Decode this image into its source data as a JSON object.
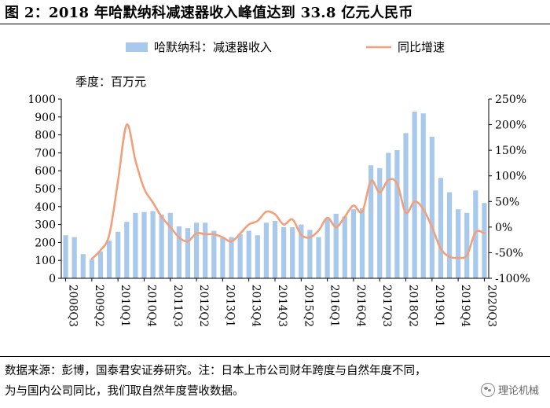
{
  "title": "图 2：2018 年哈默纳科减速器收入峰值达到 33.8 亿元人民币",
  "source_line1": "数据来源：彭博，国泰君安证券研究。注：日本上市公司财年跨度与自然年度不同，",
  "source_line2": "为与国内公司同比，我们取自然年度营收数据。",
  "watermark": "理论机械",
  "colors": {
    "bar": "#a8c9ec",
    "line": "#f3a07a",
    "axis": "#000000"
  },
  "chart_data": {
    "type": "bar",
    "unit_label": "季度：百万元",
    "legend": [
      "哈默纳科：减速器收入",
      "同比增速"
    ],
    "y_left": {
      "min": 0,
      "max": 1000,
      "step": 100,
      "ticks": [
        "0",
        "100",
        "200",
        "300",
        "400",
        "500",
        "600",
        "700",
        "800",
        "900",
        "1000"
      ]
    },
    "y_right": {
      "min": -100,
      "max": 250,
      "step": 50,
      "ticks": [
        "-100%",
        "-50%",
        "0%",
        "50%",
        "100%",
        "150%",
        "200%",
        "250%"
      ]
    },
    "categories": [
      "2008Q3",
      "2008Q4",
      "2009Q1",
      "2009Q2",
      "2009Q3",
      "2009Q4",
      "2010Q1",
      "2010Q2",
      "2010Q3",
      "2010Q4",
      "2011Q1",
      "2011Q2",
      "2011Q3",
      "2011Q4",
      "2012Q1",
      "2012Q2",
      "2012Q3",
      "2012Q4",
      "2013Q1",
      "2013Q2",
      "2013Q3",
      "2013Q4",
      "2014Q1",
      "2014Q2",
      "2014Q3",
      "2014Q4",
      "2015Q1",
      "2015Q2",
      "2015Q3",
      "2015Q4",
      "2016Q1",
      "2016Q2",
      "2016Q3",
      "2016Q4",
      "2017Q1",
      "2017Q2",
      "2017Q3",
      "2017Q4",
      "2018Q1",
      "2018Q2",
      "2018Q3",
      "2018Q4",
      "2019Q1",
      "2019Q2",
      "2019Q3",
      "2019Q4",
      "2020Q1",
      "2020Q2",
      "2020Q3"
    ],
    "x_tick_labels": [
      "2008Q3",
      "2009Q2",
      "2010Q1",
      "2010Q4",
      "2011Q3",
      "2012Q2",
      "2013Q1",
      "2013Q4",
      "2014Q3",
      "2015Q2",
      "2016Q1",
      "2016Q4",
      "2017Q3",
      "2018Q2",
      "2019Q1",
      "2019Q4",
      "2020Q3"
    ],
    "series": [
      {
        "name": "哈默纳科：减速器收入",
        "type": "bar",
        "values": [
          240,
          230,
          135,
          105,
          150,
          210,
          260,
          315,
          365,
          370,
          375,
          355,
          365,
          290,
          280,
          310,
          310,
          265,
          225,
          230,
          245,
          265,
          240,
          310,
          320,
          285,
          285,
          300,
          270,
          230,
          330,
          360,
          345,
          385,
          390,
          630,
          615,
          700,
          715,
          810,
          930,
          920,
          790,
          560,
          480,
          385,
          365,
          490,
          420
        ]
      },
      {
        "name": "同比增速",
        "type": "line",
        "values": [
          null,
          null,
          null,
          -62,
          -45,
          -15,
          90,
          200,
          130,
          75,
          48,
          20,
          0,
          -20,
          -28,
          -12,
          -14,
          -14,
          -20,
          -28,
          -13,
          5,
          12,
          30,
          25,
          5,
          15,
          -15,
          -20,
          -7,
          18,
          0,
          20,
          42,
          30,
          90,
          68,
          92,
          85,
          28,
          50,
          35,
          0,
          -42,
          -58,
          -60,
          -55,
          -10,
          -12
        ]
      }
    ]
  }
}
